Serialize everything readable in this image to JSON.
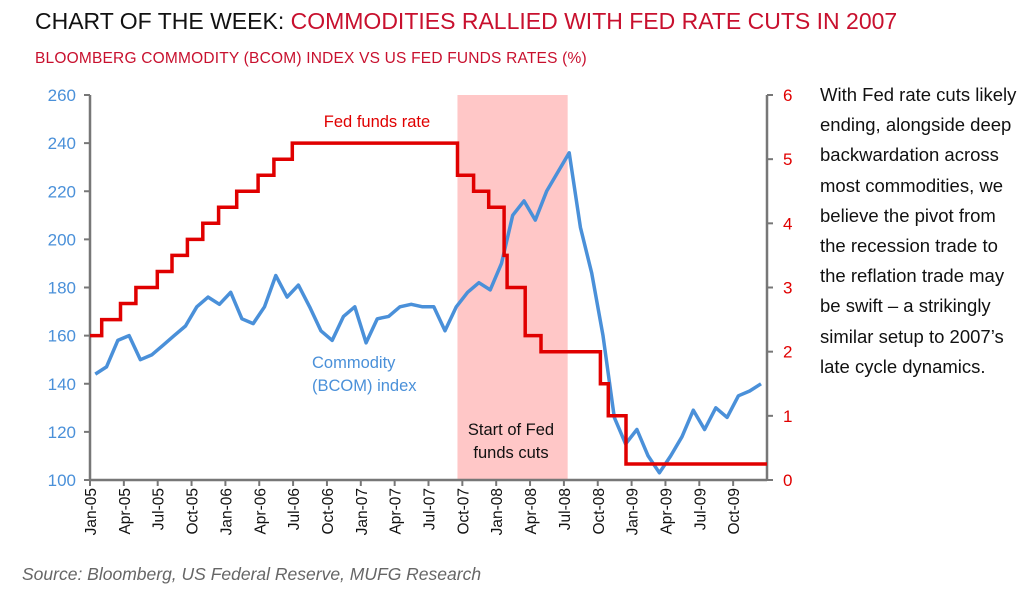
{
  "header": {
    "title_prefix": "CHART OF THE WEEK: ",
    "title_main": "COMMODITIES RALLIED WITH FED RATE CUTS IN 2007",
    "subtitle": "BLOOMBERG COMMODITY (BCOM) INDEX VS US FED FUNDS RATES (%)"
  },
  "commentary": "With Fed rate cuts likely ending, alongside deep backwardation across most commodities, we believe the pivot from the recession trade to the reflation trade may be swift – a strikingly similar setup to 2007’s late cycle dynamics.",
  "source": "Source: Bloomberg, US Federal Reserve, MUFG Research",
  "colors": {
    "bcom": "#4a90d9",
    "fed": "#e00000",
    "shade": "#ffc7c7",
    "axis": "#777777",
    "title_red": "#c8102e"
  },
  "chart_data": {
    "type": "line",
    "x_range": [
      "2005-01",
      "2009-12"
    ],
    "x_ticks": [
      "Jan-05",
      "Apr-05",
      "Jul-05",
      "Oct-05",
      "Jan-06",
      "Apr-06",
      "Jul-06",
      "Oct-06",
      "Jan-07",
      "Apr-07",
      "Jul-07",
      "Oct-07",
      "Jan-08",
      "Apr-08",
      "Jul-08",
      "Oct-08",
      "Jan-09",
      "Apr-09",
      "Jul-09",
      "Oct-09"
    ],
    "y_left": {
      "range": [
        100,
        260
      ],
      "ticks": [
        100,
        120,
        140,
        160,
        180,
        200,
        220,
        240,
        260
      ]
    },
    "y_right": {
      "range": [
        0,
        6
      ],
      "ticks": [
        0,
        1,
        2,
        3,
        4,
        5,
        6
      ]
    },
    "grid": false,
    "shaded_period": {
      "start": "2007-09-18",
      "end": "2008-07-11",
      "label": "Start of Fed funds cuts"
    },
    "series": [
      {
        "name": "Commodity (BCOM) index",
        "axis": "left",
        "x": [
          "2005-01",
          "2005-02",
          "2005-03",
          "2005-04",
          "2005-05",
          "2005-06",
          "2005-07",
          "2005-08",
          "2005-09",
          "2005-10",
          "2005-11",
          "2005-12",
          "2006-01",
          "2006-02",
          "2006-03",
          "2006-04",
          "2006-05",
          "2006-06",
          "2006-07",
          "2006-08",
          "2006-09",
          "2006-10",
          "2006-11",
          "2006-12",
          "2007-01",
          "2007-02",
          "2007-03",
          "2007-04",
          "2007-05",
          "2007-06",
          "2007-07",
          "2007-08",
          "2007-09",
          "2007-10",
          "2007-11",
          "2007-12",
          "2008-01",
          "2008-02",
          "2008-03",
          "2008-04",
          "2008-05",
          "2008-06",
          "2008-07",
          "2008-08",
          "2008-09",
          "2008-10",
          "2008-11",
          "2008-12",
          "2009-01",
          "2009-02",
          "2009-03",
          "2009-04",
          "2009-05",
          "2009-06",
          "2009-07",
          "2009-08",
          "2009-09",
          "2009-10",
          "2009-11",
          "2009-12"
        ],
        "values": [
          144,
          147,
          158,
          160,
          150,
          152,
          156,
          160,
          164,
          172,
          176,
          173,
          178,
          167,
          165,
          172,
          185,
          176,
          181,
          172,
          162,
          158,
          168,
          172,
          157,
          167,
          168,
          172,
          173,
          172,
          172,
          162,
          172,
          178,
          182,
          179,
          190,
          210,
          216,
          208,
          220,
          228,
          236,
          205,
          186,
          160,
          126,
          115,
          121,
          110,
          103,
          110,
          118,
          129,
          121,
          130,
          126,
          135,
          137,
          140
        ]
      },
      {
        "name": "Fed funds rate",
        "axis": "right",
        "step": true,
        "x": [
          "2005-01-01",
          "2005-02-02",
          "2005-03-22",
          "2005-05-03",
          "2005-06-30",
          "2005-08-09",
          "2005-09-20",
          "2005-11-01",
          "2005-12-13",
          "2006-01-31",
          "2006-03-28",
          "2006-05-10",
          "2006-06-29",
          "2007-09-18",
          "2007-10-31",
          "2007-12-11",
          "2008-01-22",
          "2008-01-30",
          "2008-03-18",
          "2008-04-30",
          "2008-10-08",
          "2008-10-29",
          "2008-12-16",
          "2009-12-31"
        ],
        "values": [
          2.25,
          2.5,
          2.75,
          3.0,
          3.25,
          3.5,
          3.75,
          4.0,
          4.25,
          4.5,
          4.75,
          5.0,
          5.25,
          4.75,
          4.5,
          4.25,
          3.5,
          3.0,
          2.25,
          2.0,
          1.5,
          1.0,
          0.25,
          0.25
        ]
      }
    ],
    "annotations": {
      "fed_label": "Fed funds rate",
      "bcom_label_line1": "Commodity",
      "bcom_label_line2": "(BCOM) index",
      "shade_label_line1": "Start of Fed",
      "shade_label_line2": "funds cuts"
    }
  }
}
